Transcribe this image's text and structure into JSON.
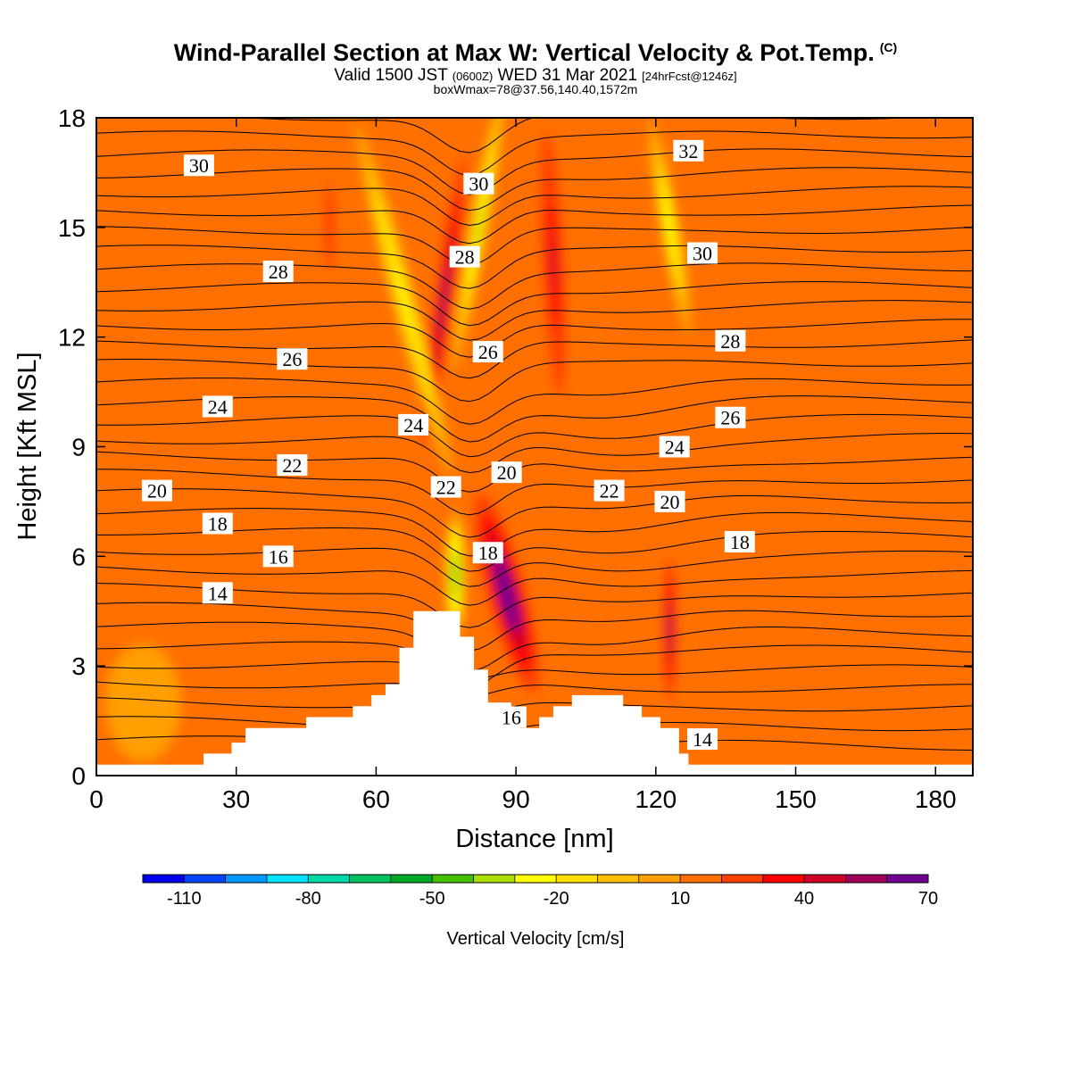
{
  "header": {
    "title": "Wind-Parallel Section at Max W: Vertical Velocity & Pot.Temp.",
    "copyright": "(C)",
    "valid_prefix": "Valid 1500 JST",
    "valid_z": "(0600Z)",
    "valid_date": "WED 31 Mar 2021",
    "forecast": "[24hrFcst@1246z]",
    "boxwmax": "boxWmax=78@37.56,140.40,1572m"
  },
  "chart_data": {
    "type": "heatmap",
    "title": "Wind-Parallel Section at Max W: Vertical Velocity & Pot.Temp.",
    "xlabel": "Distance [nm]",
    "ylabel": "Height [Kft MSL]",
    "xlim": [
      0,
      188
    ],
    "ylim": [
      0,
      18
    ],
    "x_ticks": [
      "0",
      "30",
      "60",
      "90",
      "120",
      "150",
      "180"
    ],
    "x_tick_values": [
      0,
      30,
      60,
      90,
      120,
      150,
      180
    ],
    "y_ticks": [
      "0",
      "3",
      "6",
      "9",
      "12",
      "15",
      "18"
    ],
    "y_tick_values": [
      0,
      3,
      6,
      9,
      12,
      15,
      18
    ],
    "colorbar": {
      "label": "Vertical Velocity [cm/s]",
      "tick_labels": [
        "-110",
        "-80",
        "-50",
        "-20",
        "10",
        "40",
        "70"
      ],
      "tick_values": [
        -110,
        -80,
        -50,
        -20,
        10,
        40,
        70
      ],
      "colors": [
        "#0000ee",
        "#0044ff",
        "#0099ff",
        "#00e5ff",
        "#00d8a8",
        "#00c060",
        "#00a828",
        "#44c000",
        "#aadd00",
        "#ffff00",
        "#ffe000",
        "#ffbf00",
        "#ff9f00",
        "#ff7000",
        "#ff4000",
        "#ff0000",
        "#d00028",
        "#a00058",
        "#700090"
      ]
    },
    "terrain": [
      [
        0,
        0.3
      ],
      [
        23,
        0.3
      ],
      [
        23,
        0.6
      ],
      [
        29,
        0.6
      ],
      [
        29,
        0.9
      ],
      [
        32,
        0.9
      ],
      [
        32,
        1.3
      ],
      [
        45,
        1.3
      ],
      [
        45,
        1.6
      ],
      [
        55,
        1.6
      ],
      [
        55,
        1.9
      ],
      [
        59,
        1.9
      ],
      [
        59,
        2.2
      ],
      [
        62,
        2.2
      ],
      [
        62,
        2.5
      ],
      [
        65,
        2.5
      ],
      [
        65,
        3.5
      ],
      [
        68,
        3.5
      ],
      [
        68,
        4.5
      ],
      [
        78,
        4.5
      ],
      [
        78,
        3.8
      ],
      [
        81,
        3.8
      ],
      [
        81,
        2.9
      ],
      [
        84,
        2.9
      ],
      [
        84,
        2.0
      ],
      [
        89,
        2.0
      ],
      [
        89,
        1.6
      ],
      [
        91,
        1.6
      ],
      [
        91,
        1.3
      ],
      [
        95,
        1.3
      ],
      [
        95,
        1.6
      ],
      [
        98,
        1.6
      ],
      [
        98,
        1.9
      ],
      [
        102,
        1.9
      ],
      [
        102,
        2.2
      ],
      [
        113,
        2.2
      ],
      [
        113,
        1.9
      ],
      [
        117,
        1.9
      ],
      [
        117,
        1.6
      ],
      [
        121,
        1.6
      ],
      [
        121,
        1.3
      ],
      [
        125,
        1.3
      ],
      [
        125,
        0.6
      ],
      [
        127,
        0.6
      ],
      [
        127,
        0.3
      ],
      [
        188,
        0.3
      ]
    ],
    "w_features": [
      {
        "name": "updraft-main",
        "x": 88,
        "y": 5,
        "rx": 4,
        "ry": 2.8,
        "w": 75,
        "angle": -15
      },
      {
        "name": "updraft-upper",
        "x": 74.5,
        "y": 13,
        "rx": 2.5,
        "ry": 5,
        "w": 50,
        "angle": 8
      },
      {
        "name": "updraft-right",
        "x": 98,
        "y": 14,
        "rx": 3,
        "ry": 4.5,
        "w": 40,
        "angle": -3
      },
      {
        "name": "updraft-lee",
        "x": 123,
        "y": 4,
        "rx": 1.8,
        "ry": 2.5,
        "w": 50,
        "angle": 0
      },
      {
        "name": "updraft-left",
        "x": 50,
        "y": 15,
        "rx": 3,
        "ry": 3,
        "w": 25,
        "angle": 0
      },
      {
        "name": "downdraft-valley",
        "x": 77,
        "y": 5.5,
        "rx": 2.2,
        "ry": 1.8,
        "w": -45,
        "angle": 0
      },
      {
        "name": "downdraft-band",
        "x": 66,
        "y": 13,
        "rx": 2.5,
        "ry": 5,
        "w": -25,
        "angle": -15
      },
      {
        "name": "downdraft-upper",
        "x": 82,
        "y": 15,
        "rx": 2,
        "ry": 4,
        "w": -40,
        "angle": 10
      },
      {
        "name": "downdraft-right",
        "x": 123,
        "y": 15,
        "rx": 2,
        "ry": 3,
        "w": -30,
        "angle": -10
      },
      {
        "name": "downdraft-lowleft",
        "x": 10,
        "y": 2,
        "rx": 10,
        "ry": 2,
        "w": 5,
        "angle": 0
      }
    ],
    "theta_labels": [
      {
        "text": "30",
        "x": 22,
        "y": 16.7
      },
      {
        "text": "30",
        "x": 82,
        "y": 16.2
      },
      {
        "text": "32",
        "x": 127,
        "y": 17.1
      },
      {
        "text": "28",
        "x": 39,
        "y": 13.8
      },
      {
        "text": "28",
        "x": 79,
        "y": 14.2
      },
      {
        "text": "30",
        "x": 130,
        "y": 14.3
      },
      {
        "text": "26",
        "x": 42,
        "y": 11.4
      },
      {
        "text": "26",
        "x": 84,
        "y": 11.6
      },
      {
        "text": "28",
        "x": 136,
        "y": 11.9
      },
      {
        "text": "24",
        "x": 26,
        "y": 10.1
      },
      {
        "text": "24",
        "x": 68,
        "y": 9.6
      },
      {
        "text": "26",
        "x": 136,
        "y": 9.8
      },
      {
        "text": "22",
        "x": 42,
        "y": 8.5
      },
      {
        "text": "24",
        "x": 124,
        "y": 9
      },
      {
        "text": "20",
        "x": 13,
        "y": 7.8
      },
      {
        "text": "22",
        "x": 75,
        "y": 7.9
      },
      {
        "text": "20",
        "x": 88,
        "y": 8.3
      },
      {
        "text": "22",
        "x": 110,
        "y": 7.8
      },
      {
        "text": "20",
        "x": 123,
        "y": 7.5
      },
      {
        "text": "18",
        "x": 26,
        "y": 6.9
      },
      {
        "text": "18",
        "x": 84,
        "y": 6.1
      },
      {
        "text": "18",
        "x": 138,
        "y": 6.4
      },
      {
        "text": "16",
        "x": 39,
        "y": 6
      },
      {
        "text": "14",
        "x": 26,
        "y": 5
      },
      {
        "text": "16",
        "x": 89,
        "y": 1.6
      },
      {
        "text": "14",
        "x": 130,
        "y": 1.0
      }
    ]
  }
}
